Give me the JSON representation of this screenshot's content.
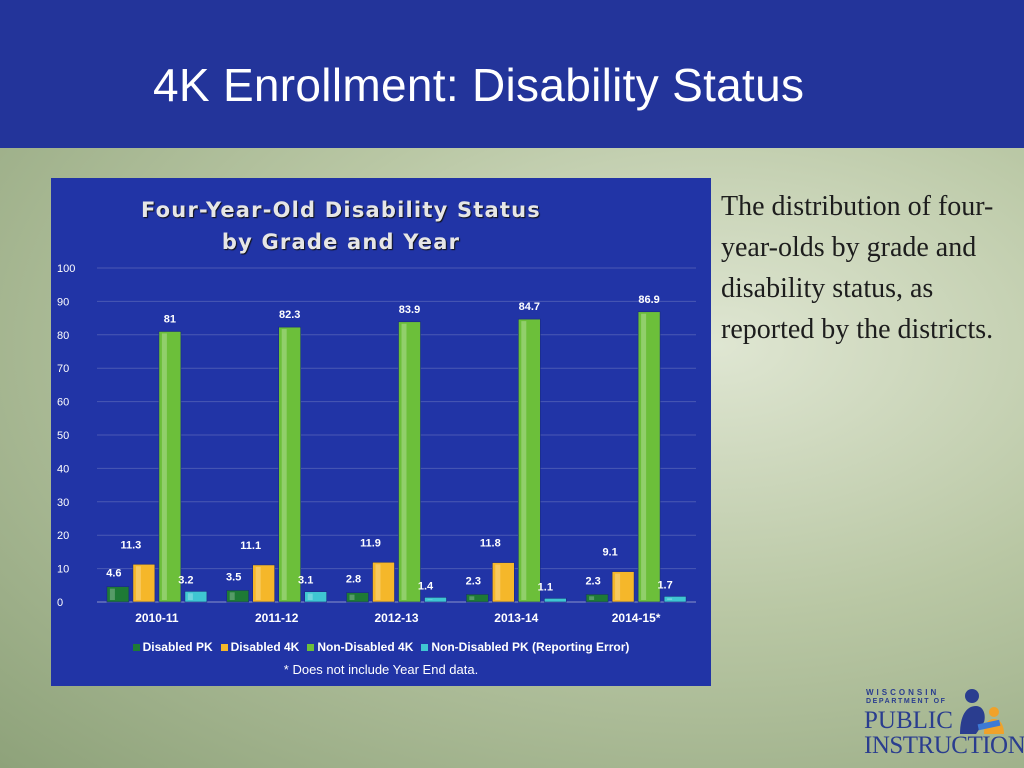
{
  "slide": {
    "title": "4K Enrollment: Disability Status",
    "side_text": "The distribution of four-year-olds by grade and disability status, as reported by the districts."
  },
  "logo": {
    "line1": "WISCONSIN",
    "line2": "DEPARTMENT OF",
    "line3": "PUBLIC",
    "line4": "INSTRUCTION"
  },
  "chart_data": {
    "type": "bar",
    "title": "Four-Year-Old Disability Status by Grade and Year",
    "categories": [
      "2010-11",
      "2011-12",
      "2012-13",
      "2013-14",
      "2014-15*"
    ],
    "series": [
      {
        "name": "Disabled PK",
        "color": "#1e7a35",
        "values": [
          4.6,
          3.5,
          2.8,
          2.3,
          2.3
        ]
      },
      {
        "name": "Disabled 4K",
        "color": "#f5b72a",
        "values": [
          11.3,
          11.1,
          11.9,
          11.8,
          9.1
        ]
      },
      {
        "name": "Non-Disabled 4K",
        "color": "#6cbf3a",
        "values": [
          81,
          82.3,
          83.9,
          84.7,
          86.9
        ]
      },
      {
        "name": "Non-Disabled PK (Reporting Error)",
        "color": "#3fc6d2",
        "values": [
          3.2,
          3.1,
          1.4,
          1.1,
          1.7
        ]
      }
    ],
    "ylim": [
      0,
      100
    ],
    "yticks": [
      0,
      10,
      20,
      30,
      40,
      50,
      60,
      70,
      80,
      90,
      100
    ],
    "grid": true,
    "legend_position": "bottom",
    "footnote": "* Does not include Year End data."
  }
}
